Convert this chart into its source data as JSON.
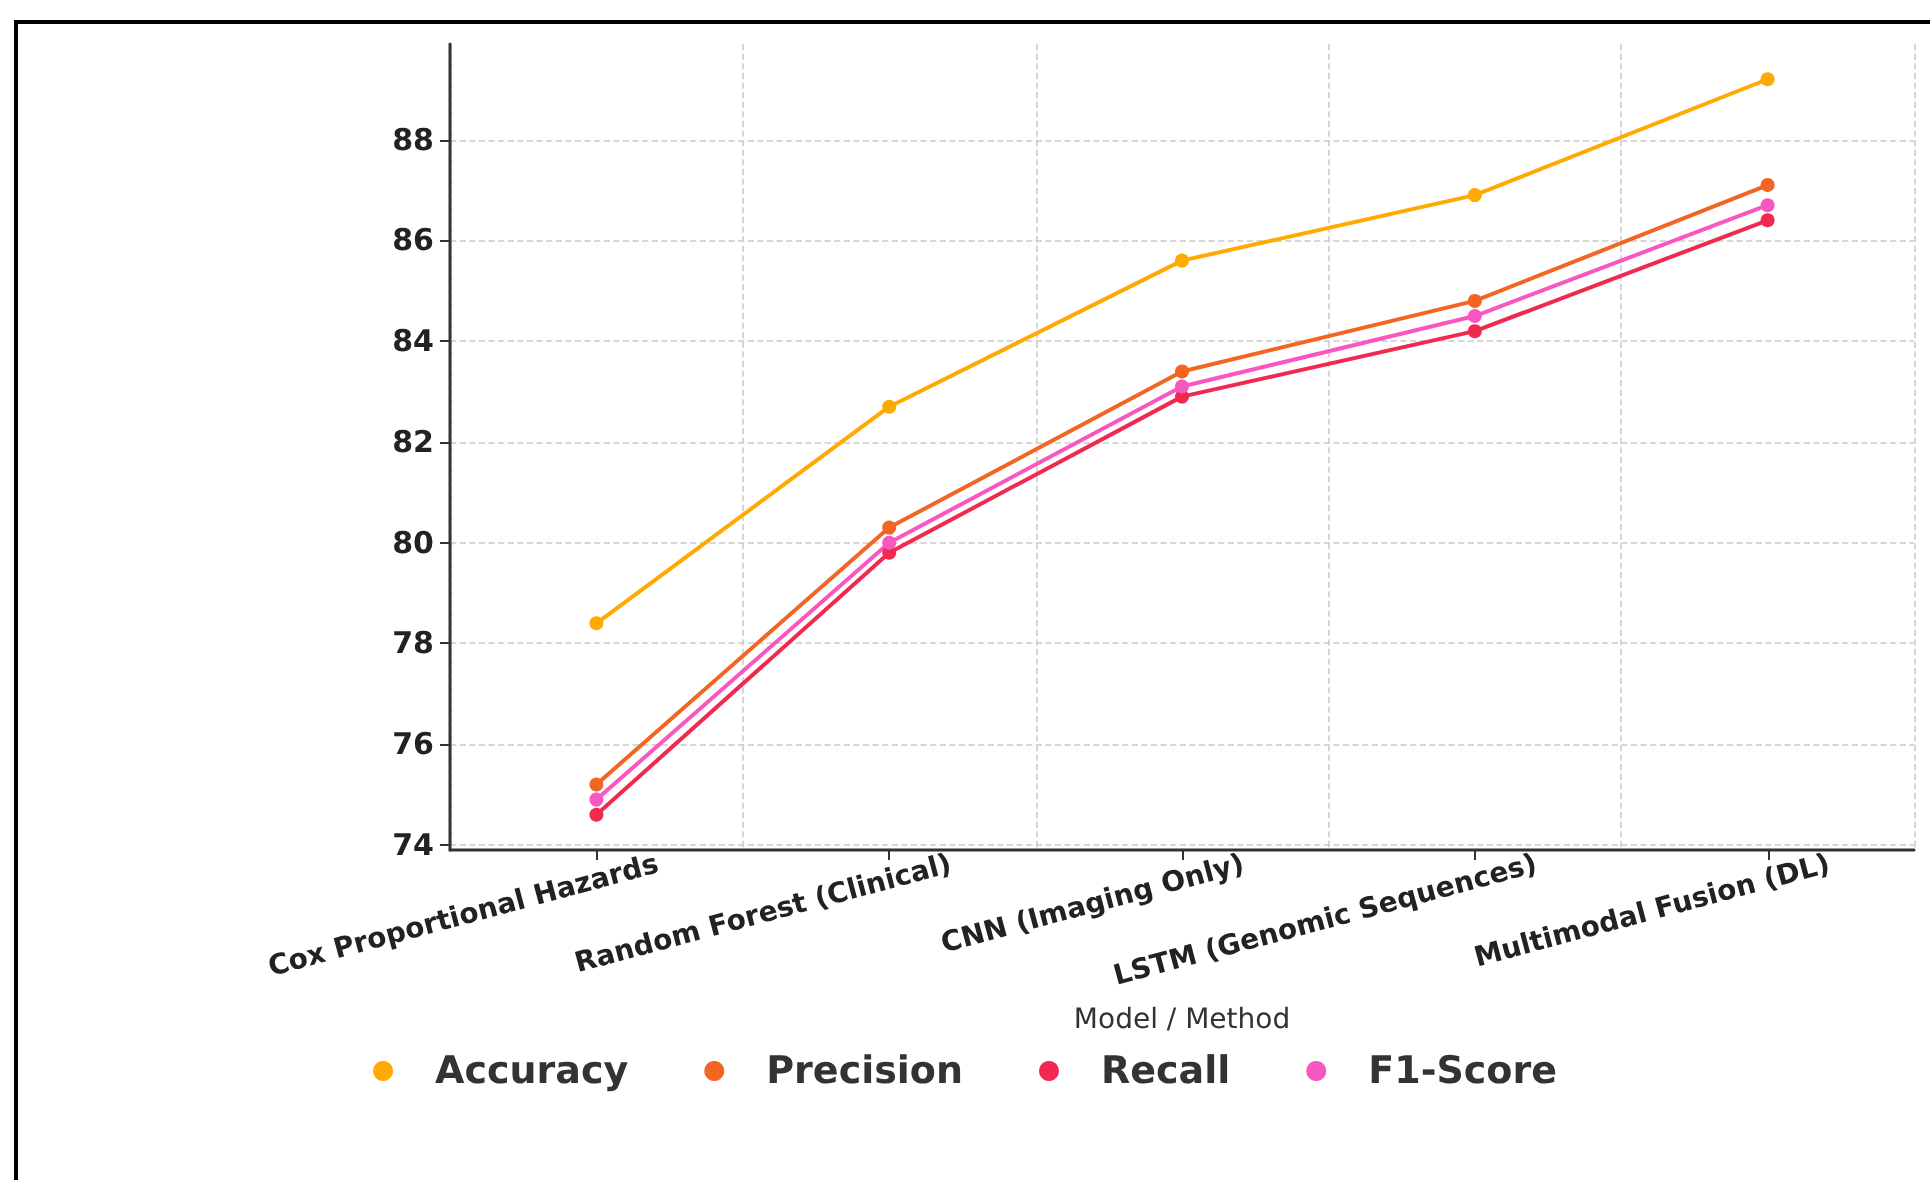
{
  "chart_data": {
    "type": "line",
    "xlabel": "Model / Method",
    "categories": [
      "Cox Proportional Hazards",
      "Random Forest (Clinical)",
      "CNN (Imaging Only)",
      "LSTM (Genomic Sequences)",
      "Multimodal Fusion (DL)"
    ],
    "series": [
      {
        "name": "Accuracy",
        "color": "#ffaa00",
        "values": [
          78.4,
          82.7,
          85.6,
          86.9,
          89.2
        ]
      },
      {
        "name": "Precision",
        "color": "#f26522",
        "values": [
          75.2,
          80.3,
          83.4,
          84.8,
          87.1
        ]
      },
      {
        "name": "Recall",
        "color": "#f0294f",
        "values": [
          74.6,
          79.8,
          82.9,
          84.2,
          86.4
        ]
      },
      {
        "name": "F1-Score",
        "color": "#f957c0",
        "values": [
          74.9,
          80.0,
          83.1,
          84.5,
          86.7
        ]
      }
    ],
    "ylim": [
      73.9,
      89.9
    ],
    "yticks": [
      74,
      76,
      78,
      80,
      82,
      84,
      86,
      88
    ],
    "grid": true,
    "legend": "bottom",
    "marker": "circle",
    "line_style": "solid"
  }
}
